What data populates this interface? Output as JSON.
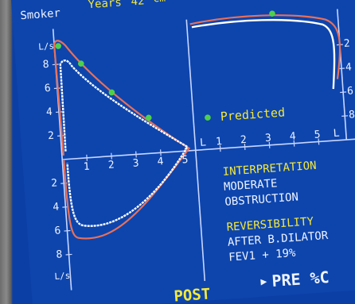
{
  "header": {
    "smoker_label": "Smoker",
    "years_label": "Years",
    "years_value": "42",
    "cut_text": "cm"
  },
  "loop_axes": {
    "y_unit": "L/s",
    "x_unit": "L",
    "ticks_upper_left": [
      "8",
      "6",
      "4",
      "2"
    ],
    "ticks_lower_left": [
      "2",
      "4",
      "6",
      "8"
    ],
    "ticks_right": [
      "2",
      "4",
      "6",
      "8"
    ],
    "x_ticks": [
      "1",
      "2",
      "3",
      "4",
      "5"
    ]
  },
  "predicted_label": "Predicted",
  "interpretation": {
    "title": "INTERPRETATION",
    "line1": "MODERATE",
    "line2": "OBSTRUCTION"
  },
  "reversibility": {
    "title": "REVERSIBILITY",
    "line1": "AFTER B.DILATOR",
    "line2": "FEV1 + 19%"
  },
  "footer": {
    "post": "POST",
    "pre": "PRE %C"
  },
  "colors": {
    "screen": "#0d45ad",
    "grid": "#c8d6ff",
    "post_curve": "#ffffff",
    "pre_curve": "#e8705a",
    "predicted_points": "#4fd04a",
    "label_yellow": "#f4e83a"
  }
}
